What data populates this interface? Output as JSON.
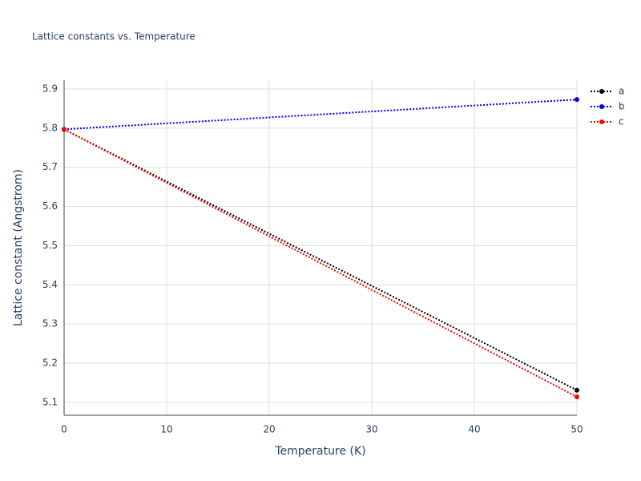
{
  "chart_data": {
    "type": "line",
    "title": "Lattice constants vs. Temperature",
    "xlabel": "Temperature (K)",
    "ylabel": "Lattice constant (Angstrom)",
    "x": [
      0,
      50
    ],
    "series": [
      {
        "name": "a",
        "color": "#000000",
        "values": [
          5.797,
          5.131
        ]
      },
      {
        "name": "b",
        "color": "#0000ff",
        "values": [
          5.797,
          5.873
        ]
      },
      {
        "name": "c",
        "color": "#ff0000",
        "values": [
          5.797,
          5.114
        ]
      }
    ],
    "xlim": [
      0,
      50
    ],
    "xticks": [
      0,
      10,
      20,
      30,
      40,
      50
    ],
    "ylim": [
      5.067,
      5.9225
    ],
    "yticks": [
      {
        "value": 5.1,
        "label": "5.1"
      },
      {
        "value": 5.2,
        "label": "5.2"
      },
      {
        "value": 5.3,
        "label": "5.3"
      },
      {
        "value": 5.4,
        "label": "5.4"
      },
      {
        "value": 5.5,
        "label": "5.5"
      },
      {
        "value": 5.6,
        "label": "5.6"
      },
      {
        "value": 5.7,
        "label": "5.7"
      },
      {
        "value": 5.8,
        "label": "5.8"
      },
      {
        "value": 5.9,
        "label": "5.9"
      }
    ],
    "grid": true,
    "legend": "top-right"
  }
}
